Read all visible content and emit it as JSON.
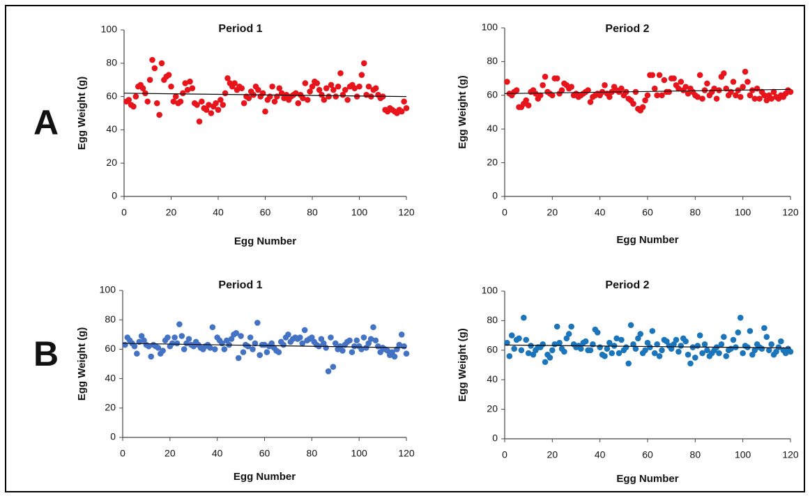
{
  "panel_labels": [
    "A",
    "B"
  ],
  "chart_data": [
    {
      "type": "scatter",
      "title": "Period 1",
      "x_label": "Egg Number",
      "y_label": "Egg Weight (g)",
      "color": "#e8141b",
      "xlim": [
        0,
        120
      ],
      "ylim": [
        0,
        100
      ],
      "xticks": [
        0,
        20,
        40,
        60,
        80,
        100,
        120
      ],
      "yticks": [
        0,
        20,
        40,
        60,
        80,
        100
      ],
      "x": [
        1,
        2,
        3,
        4,
        5,
        6,
        7,
        8,
        9,
        10,
        11,
        12,
        13,
        14,
        15,
        16,
        17,
        18,
        19,
        20,
        21,
        22,
        23,
        24,
        25,
        26,
        27,
        28,
        29,
        30,
        31,
        32,
        33,
        34,
        35,
        36,
        37,
        38,
        39,
        40,
        41,
        42,
        43,
        44,
        45,
        46,
        47,
        48,
        49,
        50,
        51,
        52,
        53,
        54,
        55,
        56,
        57,
        58,
        59,
        60,
        61,
        62,
        63,
        64,
        65,
        66,
        67,
        68,
        69,
        70,
        71,
        72,
        73,
        74,
        75,
        76,
        77,
        78,
        79,
        80,
        81,
        82,
        83,
        84,
        85,
        86,
        87,
        88,
        89,
        90,
        91,
        92,
        93,
        94,
        95,
        96,
        97,
        98,
        99,
        100,
        101,
        102,
        103,
        104,
        105,
        106,
        107,
        108,
        109,
        110,
        111,
        112,
        113,
        114,
        115,
        116,
        117,
        118,
        119,
        120
      ],
      "values": [
        57,
        58,
        55,
        54,
        60,
        66,
        67,
        65,
        62,
        57,
        70,
        82,
        77,
        56,
        49,
        80,
        70,
        72,
        73,
        66,
        57,
        60,
        56,
        57,
        62,
        68,
        64,
        69,
        65,
        56,
        55,
        45,
        57,
        53,
        52,
        55,
        50,
        54,
        56,
        52,
        58,
        55,
        62,
        71,
        68,
        66,
        68,
        64,
        66,
        65,
        56,
        60,
        59,
        63,
        61,
        66,
        64,
        60,
        62,
        51,
        58,
        60,
        66,
        57,
        60,
        65,
        62,
        59,
        61,
        58,
        60,
        61,
        62,
        56,
        61,
        59,
        68,
        58,
        63,
        66,
        69,
        68,
        64,
        61,
        58,
        65,
        60,
        67,
        64,
        60,
        66,
        74,
        61,
        64,
        58,
        66,
        67,
        65,
        60,
        66,
        73,
        80,
        61,
        66,
        60,
        64,
        65,
        61,
        59,
        60,
        52,
        51,
        53,
        52,
        51,
        50,
        52,
        51,
        57,
        53
      ],
      "trendline": {
        "x": [
          0,
          120
        ],
        "y": [
          62,
          60
        ]
      }
    },
    {
      "type": "scatter",
      "title": "Period 2",
      "x_label": "Egg Number",
      "y_label": "Egg Weight (g)",
      "color": "#e8141b",
      "xlim": [
        0,
        120
      ],
      "ylim": [
        0,
        100
      ],
      "xticks": [
        0,
        20,
        40,
        60,
        80,
        100,
        120
      ],
      "yticks": [
        0,
        20,
        40,
        60,
        80,
        100
      ],
      "x": [
        1,
        2,
        3,
        4,
        5,
        6,
        7,
        8,
        9,
        10,
        11,
        12,
        13,
        14,
        15,
        16,
        17,
        18,
        19,
        20,
        21,
        22,
        23,
        24,
        25,
        26,
        27,
        28,
        29,
        30,
        31,
        32,
        33,
        34,
        35,
        36,
        37,
        38,
        39,
        40,
        41,
        42,
        43,
        44,
        45,
        46,
        47,
        48,
        49,
        50,
        51,
        52,
        53,
        54,
        55,
        56,
        57,
        58,
        59,
        60,
        61,
        62,
        63,
        64,
        65,
        66,
        67,
        68,
        69,
        70,
        71,
        72,
        73,
        74,
        75,
        76,
        77,
        78,
        79,
        80,
        81,
        82,
        83,
        84,
        85,
        86,
        87,
        88,
        89,
        90,
        91,
        92,
        93,
        94,
        95,
        96,
        97,
        98,
        99,
        100,
        101,
        102,
        103,
        104,
        105,
        106,
        107,
        108,
        109,
        110,
        111,
        112,
        113,
        114,
        115,
        116,
        117,
        118,
        119,
        120
      ],
      "values": [
        68,
        61,
        60,
        62,
        63,
        53,
        53,
        55,
        57,
        54,
        62,
        63,
        61,
        58,
        60,
        66,
        71,
        62,
        61,
        60,
        70,
        70,
        61,
        63,
        67,
        66,
        64,
        65,
        60,
        61,
        59,
        60,
        61,
        62,
        63,
        56,
        59,
        60,
        61,
        60,
        62,
        66,
        61,
        59,
        62,
        65,
        63,
        62,
        64,
        60,
        62,
        58,
        57,
        55,
        62,
        52,
        51,
        53,
        57,
        60,
        72,
        72,
        64,
        60,
        72,
        60,
        69,
        62,
        62,
        70,
        70,
        66,
        64,
        68,
        63,
        65,
        61,
        64,
        62,
        60,
        59,
        72,
        58,
        63,
        67,
        60,
        62,
        64,
        58,
        63,
        71,
        73,
        64,
        60,
        62,
        68,
        60,
        63,
        59,
        65,
        74,
        68,
        60,
        63,
        58,
        64,
        58,
        62,
        60,
        57,
        60,
        58,
        62,
        59,
        58,
        60,
        59,
        61,
        63,
        62
      ],
      "trendline": {
        "x": [
          0,
          120
        ],
        "y": [
          61,
          63.5
        ]
      }
    },
    {
      "type": "scatter",
      "title": "Period 1",
      "x_label": "Egg Number",
      "y_label": "Egg Weight (g)",
      "color": "#4472c4",
      "xlim": [
        0,
        120
      ],
      "ylim": [
        0,
        100
      ],
      "xticks": [
        0,
        20,
        40,
        60,
        80,
        100,
        120
      ],
      "yticks": [
        0,
        20,
        40,
        60,
        80,
        100
      ],
      "x": [
        1,
        2,
        3,
        4,
        5,
        6,
        7,
        8,
        9,
        10,
        11,
        12,
        13,
        14,
        15,
        16,
        17,
        18,
        19,
        20,
        21,
        22,
        23,
        24,
        25,
        26,
        27,
        28,
        29,
        30,
        31,
        32,
        33,
        34,
        35,
        36,
        37,
        38,
        39,
        40,
        41,
        42,
        43,
        44,
        45,
        46,
        47,
        48,
        49,
        50,
        51,
        52,
        53,
        54,
        55,
        56,
        57,
        58,
        59,
        60,
        61,
        62,
        63,
        64,
        65,
        66,
        67,
        68,
        69,
        70,
        71,
        72,
        73,
        74,
        75,
        76,
        77,
        78,
        79,
        80,
        81,
        82,
        83,
        84,
        85,
        86,
        87,
        88,
        89,
        90,
        91,
        92,
        93,
        94,
        95,
        96,
        97,
        98,
        99,
        100,
        101,
        102,
        103,
        104,
        105,
        106,
        107,
        108,
        109,
        110,
        111,
        112,
        113,
        114,
        115,
        116,
        117,
        118,
        119,
        120
      ],
      "values": [
        63,
        68,
        66,
        64,
        62,
        57,
        65,
        69,
        66,
        63,
        62,
        55,
        63,
        62,
        61,
        57,
        59,
        66,
        68,
        62,
        64,
        68,
        64,
        77,
        69,
        60,
        64,
        67,
        63,
        62,
        65,
        63,
        61,
        60,
        62,
        63,
        61,
        75,
        60,
        68,
        66,
        64,
        60,
        66,
        63,
        67,
        70,
        71,
        54,
        69,
        58,
        63,
        62,
        68,
        60,
        64,
        78,
        56,
        63,
        63,
        58,
        62,
        64,
        61,
        59,
        58,
        65,
        63,
        68,
        70,
        65,
        67,
        68,
        67,
        68,
        64,
        73,
        66,
        67,
        68,
        65,
        63,
        62,
        67,
        64,
        61,
        45,
        68,
        48,
        64,
        60,
        62,
        59,
        63,
        65,
        66,
        58,
        62,
        66,
        62,
        60,
        68,
        61,
        64,
        67,
        75,
        66,
        62,
        58,
        61,
        60,
        59,
        56,
        58,
        55,
        60,
        63,
        70,
        62,
        57
      ],
      "trendline": {
        "x": [
          0,
          120
        ],
        "y": [
          64,
          61
        ]
      }
    },
    {
      "type": "scatter",
      "title": "Period 2",
      "x_label": "Egg Number",
      "y_label": "Egg Weight (g)",
      "color": "#1b75bb",
      "xlim": [
        0,
        120
      ],
      "ylim": [
        0,
        100
      ],
      "xticks": [
        0,
        20,
        40,
        60,
        80,
        100,
        120
      ],
      "yticks": [
        0,
        20,
        40,
        60,
        80,
        100
      ],
      "x": [
        1,
        2,
        3,
        4,
        5,
        6,
        7,
        8,
        9,
        10,
        11,
        12,
        13,
        14,
        15,
        16,
        17,
        18,
        19,
        20,
        21,
        22,
        23,
        24,
        25,
        26,
        27,
        28,
        29,
        30,
        31,
        32,
        33,
        34,
        35,
        36,
        37,
        38,
        39,
        40,
        41,
        42,
        43,
        44,
        45,
        46,
        47,
        48,
        49,
        50,
        51,
        52,
        53,
        54,
        55,
        56,
        57,
        58,
        59,
        60,
        61,
        62,
        63,
        64,
        65,
        66,
        67,
        68,
        69,
        70,
        71,
        72,
        73,
        74,
        75,
        76,
        77,
        78,
        79,
        80,
        81,
        82,
        83,
        84,
        85,
        86,
        87,
        88,
        89,
        90,
        91,
        92,
        93,
        94,
        95,
        96,
        97,
        98,
        99,
        100,
        101,
        102,
        103,
        104,
        105,
        106,
        107,
        108,
        109,
        110,
        111,
        112,
        113,
        114,
        115,
        116,
        117,
        118,
        119,
        120
      ],
      "values": [
        65,
        56,
        70,
        61,
        67,
        68,
        60,
        82,
        67,
        58,
        63,
        57,
        60,
        62,
        62,
        64,
        52,
        57,
        55,
        60,
        64,
        76,
        65,
        61,
        59,
        68,
        71,
        76,
        64,
        62,
        63,
        61,
        65,
        66,
        60,
        60,
        64,
        74,
        72,
        62,
        57,
        56,
        61,
        65,
        58,
        63,
        68,
        58,
        67,
        60,
        62,
        51,
        77,
        64,
        61,
        68,
        71,
        58,
        60,
        65,
        62,
        73,
        58,
        64,
        56,
        60,
        67,
        66,
        63,
        61,
        64,
        67,
        59,
        63,
        68,
        66,
        57,
        51,
        62,
        55,
        63,
        70,
        58,
        64,
        60,
        56,
        58,
        60,
        62,
        58,
        64,
        69,
        56,
        60,
        61,
        67,
        62,
        72,
        82,
        58,
        63,
        62,
        73,
        57,
        60,
        64,
        62,
        61,
        75,
        69,
        60,
        64,
        57,
        59,
        62,
        66,
        60,
        58,
        61,
        59
      ],
      "trendline": {
        "x": [
          0,
          120
        ],
        "y": [
          63.5,
          61.5
        ]
      }
    }
  ]
}
